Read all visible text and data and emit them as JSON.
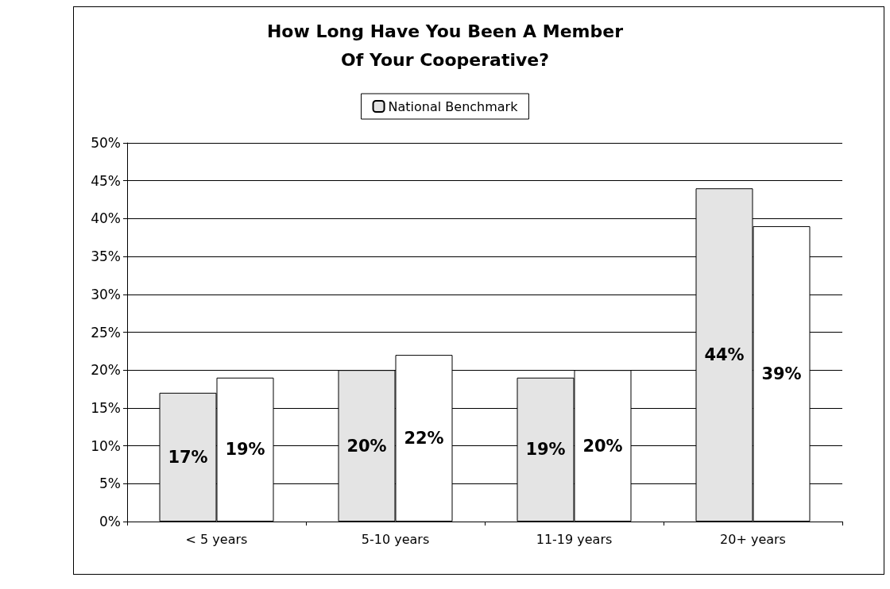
{
  "chart_data": {
    "type": "bar",
    "title": "How Long Have You Been A Member\nOf Your Cooperative?",
    "categories": [
      "< 5 years",
      "5-10 years",
      "11-19 years",
      "20+ years"
    ],
    "series": [
      {
        "name": "National Benchmark",
        "color": "#e4e4e4",
        "values": [
          17,
          20,
          19,
          44
        ],
        "value_labels": [
          "17%",
          "20%",
          "19%",
          "44%"
        ]
      },
      {
        "color": "#ffffff",
        "values": [
          19,
          22,
          20,
          39
        ],
        "value_labels": [
          "19%",
          "22%",
          "20%",
          "39%"
        ]
      }
    ],
    "ylim": [
      0,
      50
    ],
    "yticks": [
      {
        "value": 0,
        "label": "0%"
      },
      {
        "value": 5,
        "label": "5%"
      },
      {
        "value": 10,
        "label": "10%"
      },
      {
        "value": 15,
        "label": "15%"
      },
      {
        "value": 20,
        "label": "20%"
      },
      {
        "value": 25,
        "label": "25%"
      },
      {
        "value": 30,
        "label": "30%"
      },
      {
        "value": 35,
        "label": "35%"
      },
      {
        "value": 40,
        "label": "40%"
      },
      {
        "value": 45,
        "label": "45%"
      },
      {
        "value": 50,
        "label": "50%"
      }
    ],
    "grid": "y",
    "legend": "top"
  }
}
